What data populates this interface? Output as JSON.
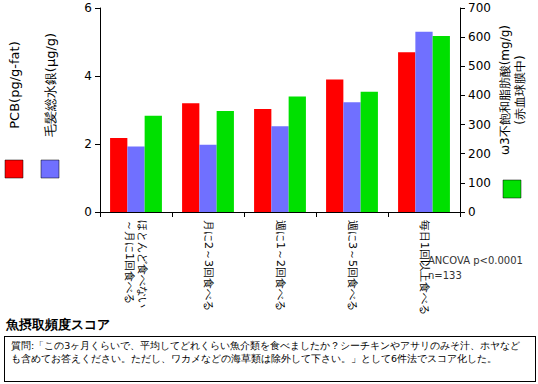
{
  "chart_data": {
    "type": "bar",
    "categories": [
      "ほとんど食べない～月に1回食べる",
      "月に2～3回食べる",
      "週に1～2回食べる",
      "週に3～5回食べる",
      "毎日1回以上食べる"
    ],
    "series": [
      {
        "name": "PCB(pg/g-fat)",
        "color": "#ff0000",
        "values": [
          2.18,
          3.2,
          3.03,
          3.9,
          4.7
        ]
      },
      {
        "name": "毛髪総水銀(μg/g)",
        "color": "#7070ff",
        "values": [
          1.93,
          1.98,
          2.52,
          3.23,
          5.3
        ]
      },
      {
        "name": "ω3不飽和脂肪酸(mg/g)\n(赤血球膜中)",
        "color": "#00e000",
        "values": [
          330,
          347,
          396,
          413,
          604
        ],
        "axis": "y2"
      }
    ],
    "ylim": [
      0,
      6
    ],
    "yticks": [
      0,
      2,
      4,
      6
    ],
    "y2lim": [
      0,
      700
    ],
    "y2ticks": [
      0,
      100,
      200,
      300,
      400,
      500,
      600,
      700
    ],
    "grid": false,
    "annotations": [
      "ANCOVA p<0.0001",
      "n=133"
    ],
    "x_label": "魚摂取頻度スコア",
    "caption": "質問:「この3ヶ月くらいで、平均してどれくらい魚介類を食べましたか？シーチキンやアサリのみそ汁、ホヤなども含めてお答えください。ただし、ワカメなどの海草類は除外して下さい。」として6件法でスコア化した。"
  }
}
